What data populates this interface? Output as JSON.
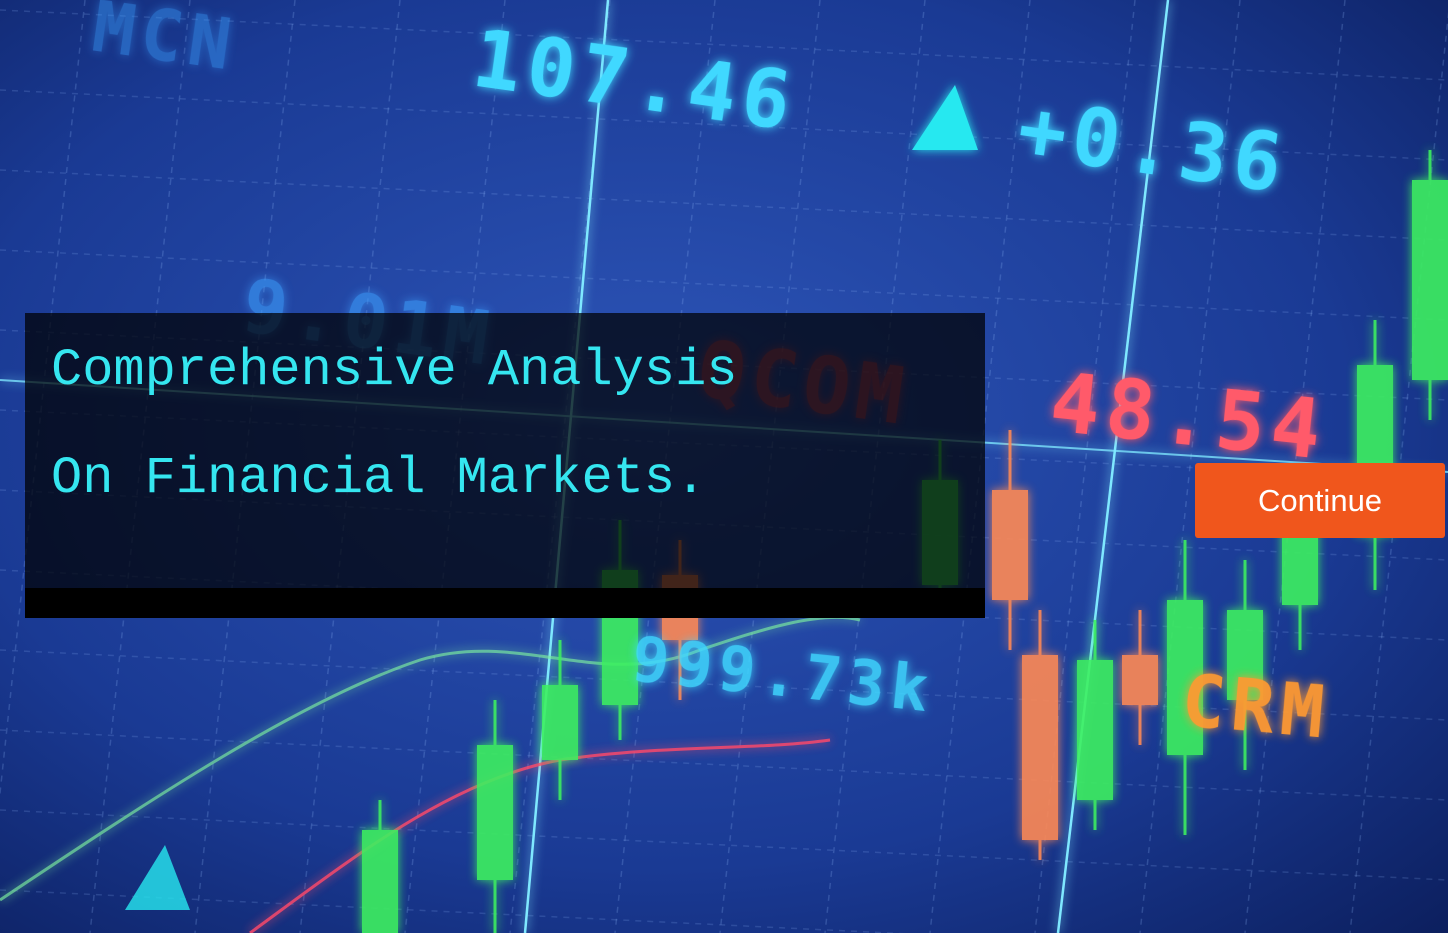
{
  "hero": {
    "title_lines": [
      "Comprehensive Analysis",
      "On Financial Markets."
    ],
    "button": "Continue"
  },
  "background": {
    "labels": [
      "107.46",
      "+0.36",
      "48.54",
      "9.01M",
      "QCOM",
      "999.73k",
      "CRM",
      "MCN"
    ]
  }
}
